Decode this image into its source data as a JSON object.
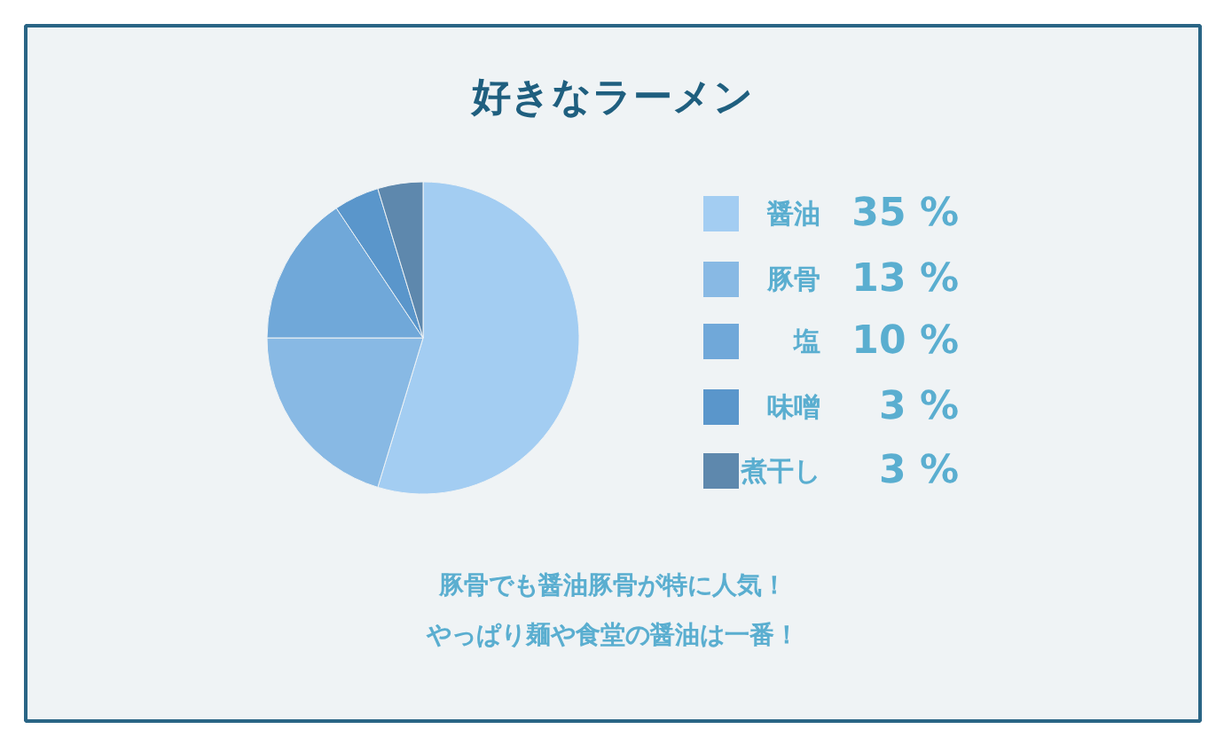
{
  "chart_data": {
    "type": "pie",
    "title": "好きなラーメン",
    "categories": [
      "醤油",
      "豚骨",
      "塩",
      "味噌",
      "煮干し"
    ],
    "values": [
      35,
      13,
      10,
      3,
      3
    ],
    "value_labels": [
      "35 %",
      "13 %",
      "10 %",
      "3 %",
      "3 %"
    ],
    "colors": [
      "#a3cdf2",
      "#88b9e4",
      "#70a8d9",
      "#5a96cb",
      "#5e88ad"
    ],
    "legend": "right",
    "annotations": [
      "豚骨でも醤油豚骨が特に人気！",
      "やっぱり麺や食堂の醤油は一番！"
    ]
  }
}
